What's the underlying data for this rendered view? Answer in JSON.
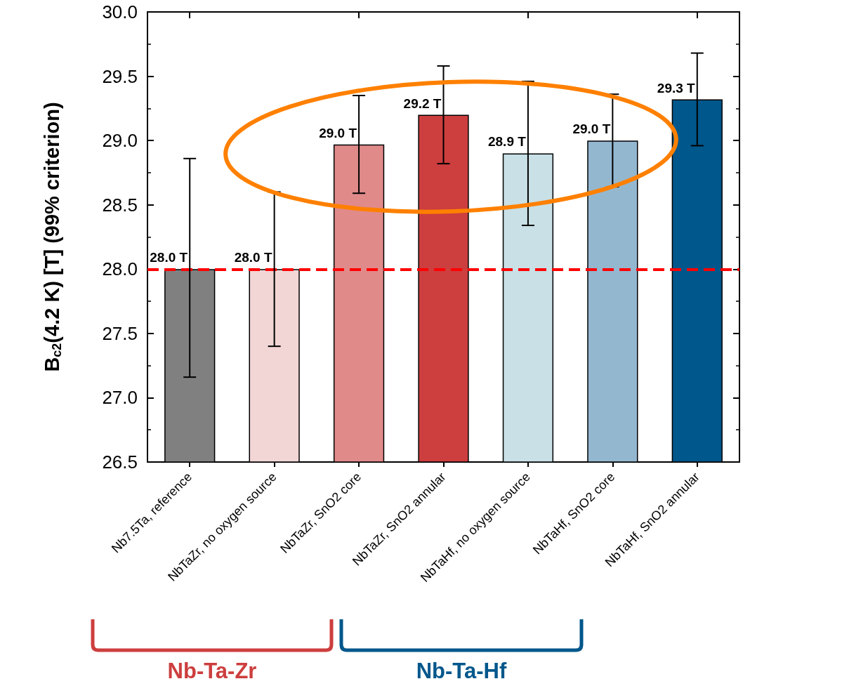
{
  "chart_data": {
    "type": "bar",
    "ylabel": "B$_{c2}$(4.2 K) [T] (99% criterion)",
    "categories": [
      "Nb7.5Ta, reference",
      "NbTaZr, no oxygen source",
      "NbTaZr, SnO2 core",
      "NbTaZr, SnO2 annular",
      "NbTaHf, no oxygen source",
      "NbTaHf, SnO2 core",
      "NbTaHf, SnO2 annular"
    ],
    "values": [
      28.0,
      28.0,
      28.97,
      29.2,
      28.9,
      29.0,
      29.32
    ],
    "colors": [
      "#808080",
      "#f2d5d5",
      "#e08a8a",
      "#cd3e3e",
      "#c8e0e6",
      "#94b7d0",
      "#00578b"
    ],
    "errors": [
      [
        27.16,
        28.86
      ],
      [
        27.4,
        28.6
      ],
      [
        28.59,
        29.35
      ],
      [
        28.82,
        29.58
      ],
      [
        28.34,
        29.46
      ],
      [
        28.64,
        29.36
      ],
      [
        28.96,
        29.68
      ]
    ],
    "value_labels": [
      "28.0 T",
      "28.0 T",
      "29.0 T",
      "29.2 T",
      "28.9 T",
      "29.0 T",
      "29.3 T"
    ],
    "ylim": [
      26.5,
      30.0
    ],
    "yticks": [
      26.5,
      {
        "value": 27,
        "label": "27.0"
      },
      27.5,
      {
        "value": 28,
        "label": "28.0"
      },
      28.5,
      {
        "value": 29,
        "label": "29.0"
      },
      29.5,
      {
        "value": 30,
        "label": "30.0"
      }
    ],
    "ref_lines": [
      {
        "axis": "y",
        "value": 28.0,
        "color": "#ff0000",
        "line_style": "dashed"
      }
    ],
    "annotations": [
      "Nb-Ta-Zr",
      "Nb-Ta-Hf"
    ]
  }
}
